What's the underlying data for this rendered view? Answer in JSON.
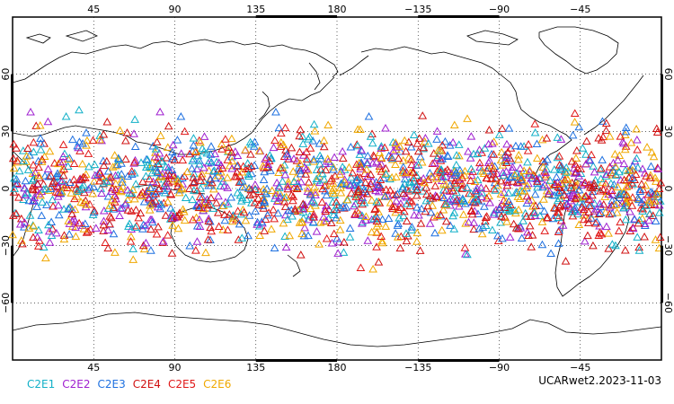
{
  "chart_data": {
    "type": "scatter",
    "projection": "cylindrical-equidistant",
    "central_longitude": 180,
    "lon_range": [
      0,
      360
    ],
    "lat_range": [
      -90,
      90
    ],
    "grid": true,
    "marker": "open-triangle",
    "lon_ticks_top": [
      "45",
      "90",
      "135",
      "180",
      "−135",
      "−90",
      "−45"
    ],
    "lon_ticks_bottom": [
      "45",
      "90",
      "135",
      "180",
      "−135",
      "−90",
      "−45"
    ],
    "lat_ticks": [
      "60",
      "30",
      "0",
      "−30",
      "−60"
    ],
    "lat_tick_values": [
      60,
      30,
      0,
      -30,
      -60
    ],
    "lon_tick_values": [
      45,
      90,
      135,
      180,
      225,
      270,
      315
    ],
    "point_band_lat": [
      -45,
      45
    ],
    "series": [
      {
        "name": "C2E1",
        "color": "#12b0c8"
      },
      {
        "name": "C2E2",
        "color": "#a020d0"
      },
      {
        "name": "C2E3",
        "color": "#1e70e0"
      },
      {
        "name": "C2E4",
        "color": "#d01010"
      },
      {
        "name": "C2E5",
        "color": "#e01818"
      },
      {
        "name": "C2E6",
        "color": "#f0a800"
      }
    ]
  },
  "caption": "UCARwet2.2023-11-03"
}
